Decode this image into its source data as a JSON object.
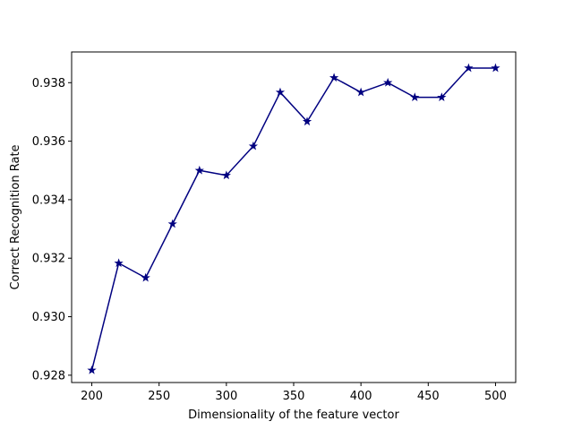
{
  "chart_data": {
    "type": "line",
    "title": "",
    "xlabel": "Dimensionality of the feature vector",
    "ylabel": "Correct Recognition Rate",
    "xlim": [
      185,
      515
    ],
    "ylim": [
      0.92775,
      0.93905
    ],
    "x_ticks": [
      200,
      250,
      300,
      350,
      400,
      450,
      500
    ],
    "y_ticks": [
      0.928,
      0.93,
      0.932,
      0.934,
      0.936,
      0.938
    ],
    "x_tick_labels": [
      "200",
      "250",
      "300",
      "350",
      "400",
      "450",
      "500"
    ],
    "y_tick_labels": [
      "0.928",
      "0.930",
      "0.932",
      "0.934",
      "0.936",
      "0.938"
    ],
    "grid": false,
    "marker": "star",
    "line_color": "#000080",
    "series": [
      {
        "x": [
          200,
          220,
          240,
          260,
          280,
          300,
          320,
          340,
          360,
          380,
          400,
          420,
          440,
          460,
          480,
          500
        ],
        "values": [
          0.92817,
          0.93183,
          0.93133,
          0.93317,
          0.935,
          0.93483,
          0.93583,
          0.93767,
          0.93667,
          0.93817,
          0.93767,
          0.938,
          0.9375,
          0.9375,
          0.9385,
          0.9385
        ]
      }
    ]
  }
}
